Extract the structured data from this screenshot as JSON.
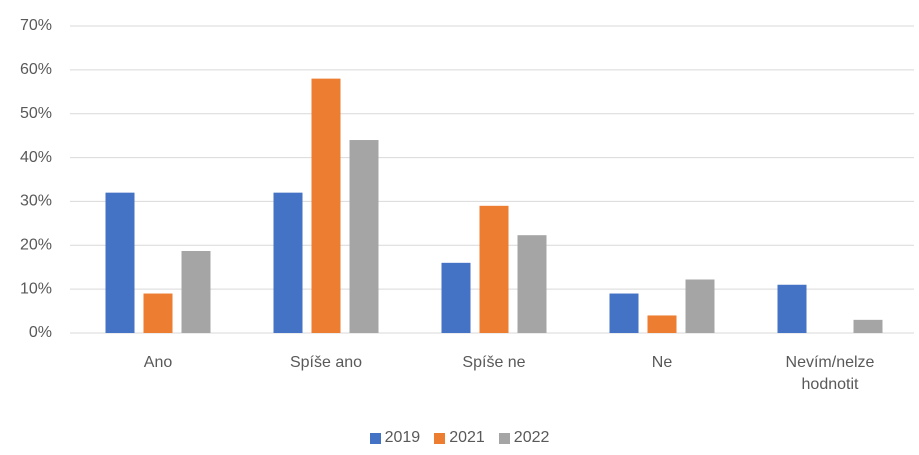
{
  "chart_data": {
    "type": "bar",
    "categories": [
      "Ano",
      "Spíše ano",
      "Spíše ne",
      "Ne",
      "Nevím/nelze hodnotit"
    ],
    "series": [
      {
        "name": "2019",
        "color": "#4472c4",
        "values": [
          32,
          32,
          16,
          9,
          11
        ]
      },
      {
        "name": "2021",
        "color": "#ed7d31",
        "values": [
          9,
          58,
          29,
          4,
          0
        ]
      },
      {
        "name": "2022",
        "color": "#a5a5a5",
        "values": [
          18.7,
          44,
          22.3,
          12.2,
          3
        ]
      }
    ],
    "ylim": [
      0,
      70
    ],
    "yticks": [
      {
        "value": 0,
        "label": "0%"
      },
      {
        "value": 10,
        "label": "10%"
      },
      {
        "value": 20,
        "label": "20%"
      },
      {
        "value": 30,
        "label": "30%"
      },
      {
        "value": 40,
        "label": "40%"
      },
      {
        "value": 50,
        "label": "50%"
      },
      {
        "value": 60,
        "label": "60%"
      },
      {
        "value": 70,
        "label": "70%"
      }
    ],
    "grid": true,
    "legend": "bottom"
  }
}
